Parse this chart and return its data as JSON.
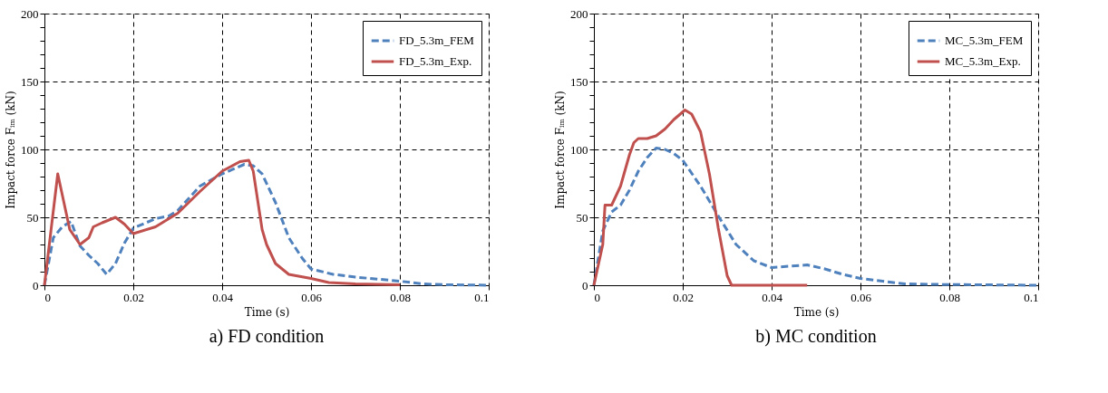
{
  "chart_data": [
    {
      "type": "line",
      "title": "a) FD condition",
      "xlabel": "Time (s)",
      "ylabel": "Impact force Fᵢₘ (kN)",
      "xlim": [
        0,
        0.1
      ],
      "ylim": [
        0,
        200
      ],
      "xticks": [
        0,
        0.02,
        0.04,
        0.06,
        0.08,
        0.1
      ],
      "yticks": [
        0,
        {
          "value": 10,
          "label": null
        },
        {
          "value": 20,
          "label": null
        },
        {
          "value": 30,
          "label": null
        },
        {
          "value": 40,
          "label": null
        },
        50,
        {
          "value": 60,
          "label": null
        },
        {
          "value": 70,
          "label": null
        },
        {
          "value": 80,
          "label": null
        },
        {
          "value": 90,
          "label": null
        },
        100,
        {
          "value": 110,
          "label": null
        },
        {
          "value": 120,
          "label": null
        },
        {
          "value": 130,
          "label": null
        },
        {
          "value": 140,
          "label": null
        },
        150,
        {
          "value": 160,
          "label": null
        },
        {
          "value": 170,
          "label": null
        },
        {
          "value": 180,
          "label": null
        },
        {
          "value": 190,
          "label": null
        },
        200
      ],
      "grid": true,
      "legend": "top right",
      "marker": "none",
      "series": [
        {
          "name": "FD_5.3m_FEM",
          "color": "#4f81bd",
          "line_style": "dashed",
          "x": [
            0,
            0.002,
            0.004,
            0.006,
            0.008,
            0.01,
            0.012,
            0.014,
            0.016,
            0.018,
            0.02,
            0.025,
            0.028,
            0.03,
            0.035,
            0.04,
            0.045,
            0.047,
            0.049,
            0.052,
            0.055,
            0.058,
            0.06,
            0.065,
            0.07,
            0.08,
            0.085,
            0.09,
            0.1
          ],
          "values": [
            0,
            35,
            43,
            47,
            29,
            22,
            16,
            8,
            16,
            31,
            42,
            49,
            51,
            55,
            73,
            82,
            89,
            88,
            82,
            61,
            35,
            20,
            12,
            8,
            6,
            3,
            1,
            0.4,
            0
          ]
        },
        {
          "name": "FD_5.3m_Exp.",
          "color": "#c0504d",
          "line_style": "solid",
          "x": [
            0,
            0.003,
            0.0057,
            0.008,
            0.01,
            0.011,
            0.013,
            0.016,
            0.018,
            0.02,
            0.025,
            0.03,
            0.035,
            0.04,
            0.044,
            0.046,
            0.047,
            0.049,
            0.05,
            0.052,
            0.055,
            0.06,
            0.064,
            0.07,
            0.08
          ],
          "values": [
            0,
            82,
            41,
            30,
            35,
            43,
            46,
            50,
            45,
            38,
            43,
            53,
            69,
            84,
            91,
            92,
            84,
            41,
            30,
            16,
            8,
            5,
            2,
            1,
            0.4
          ]
        }
      ]
    },
    {
      "type": "line",
      "title": "b) MC condition",
      "xlabel": "Time (s)",
      "ylabel": "Impact force Fᵢₘ (kN)",
      "xlim": [
        0,
        0.1
      ],
      "ylim": [
        0,
        200
      ],
      "xticks": [
        0,
        0.02,
        0.04,
        0.06,
        0.08,
        0.1
      ],
      "yticks": [
        0,
        {
          "value": 10,
          "label": null
        },
        {
          "value": 20,
          "label": null
        },
        {
          "value": 30,
          "label": null
        },
        {
          "value": 40,
          "label": null
        },
        50,
        {
          "value": 60,
          "label": null
        },
        {
          "value": 70,
          "label": null
        },
        {
          "value": 80,
          "label": null
        },
        {
          "value": 90,
          "label": null
        },
        100,
        {
          "value": 110,
          "label": null
        },
        {
          "value": 120,
          "label": null
        },
        {
          "value": 130,
          "label": null
        },
        {
          "value": 140,
          "label": null
        },
        150,
        {
          "value": 160,
          "label": null
        },
        {
          "value": 170,
          "label": null
        },
        {
          "value": 180,
          "label": null
        },
        {
          "value": 190,
          "label": null
        },
        200
      ],
      "grid": true,
      "legend": "top right",
      "marker": "none",
      "series": [
        {
          "name": "MC_5.3m_FEM",
          "color": "#4f81bd",
          "line_style": "dashed",
          "x": [
            0,
            0.002,
            0.004,
            0.006,
            0.008,
            0.01,
            0.012,
            0.014,
            0.016,
            0.018,
            0.02,
            0.024,
            0.028,
            0.032,
            0.036,
            0.04,
            0.044,
            0.048,
            0.052,
            0.056,
            0.06,
            0.065,
            0.07,
            0.08,
            0.1
          ],
          "values": [
            0,
            40,
            54,
            59,
            70,
            84,
            94,
            101,
            100,
            97,
            92,
            73,
            51,
            30,
            18,
            13,
            14,
            15,
            12,
            8,
            5,
            3,
            1,
            0.5,
            0
          ]
        },
        {
          "name": "MC_5.3m_Exp.",
          "color": "#c0504d",
          "line_style": "solid",
          "x": [
            0,
            0.002,
            0.0025,
            0.004,
            0.006,
            0.008,
            0.009,
            0.01,
            0.012,
            0.014,
            0.016,
            0.018,
            0.0205,
            0.022,
            0.024,
            0.026,
            0.028,
            0.03,
            0.031,
            0.048
          ],
          "values": [
            0,
            30,
            59,
            59,
            73,
            96,
            105,
            108,
            108,
            110,
            115,
            122,
            129,
            126,
            113,
            82,
            42,
            7,
            0,
            0
          ]
        }
      ]
    }
  ]
}
